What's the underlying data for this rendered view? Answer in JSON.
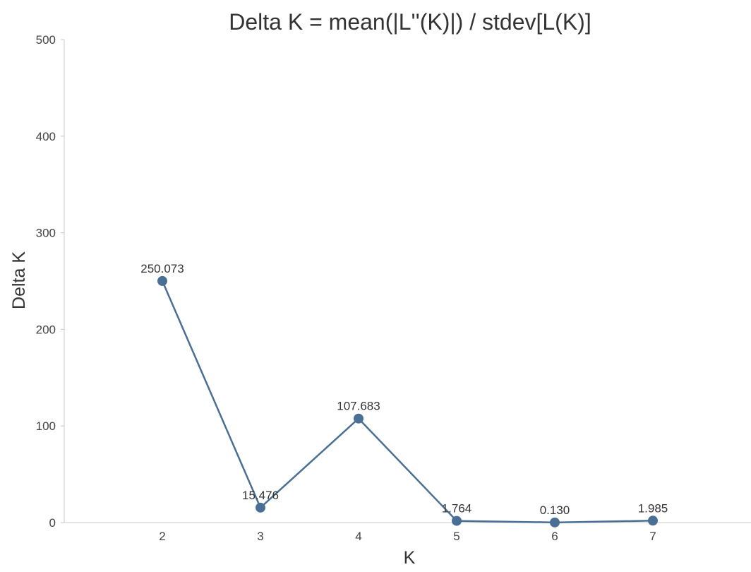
{
  "chart_data": {
    "type": "line",
    "title": "Delta K = mean(|L''(K)|) / stdev[L(K)]",
    "xlabel": "K",
    "ylabel": "Delta K",
    "x": [
      2,
      3,
      4,
      5,
      6,
      7
    ],
    "x_tick_labels": [
      "2",
      "3",
      "4",
      "5",
      "6",
      "7"
    ],
    "xlim": [
      1,
      8
    ],
    "ylim": [
      0,
      500
    ],
    "y_ticks": [
      0,
      100,
      200,
      300,
      400,
      500
    ],
    "y_tick_labels": [
      "0",
      "100",
      "200",
      "300",
      "400",
      "500"
    ],
    "series": [
      {
        "values": [
          250.073,
          15.476,
          107.683,
          1.764,
          0.13,
          1.985
        ],
        "data_labels": [
          "250.073",
          "15.476",
          "107.683",
          "1.764",
          "0.130",
          "1.985"
        ],
        "color": "#4a6f94"
      }
    ],
    "grid": false,
    "legend": "none"
  }
}
